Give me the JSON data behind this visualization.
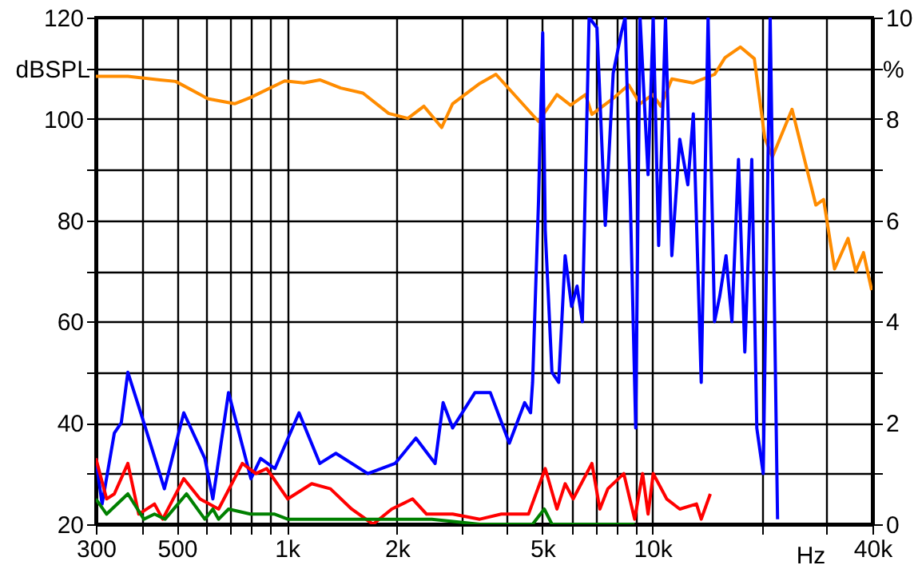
{
  "chart_data": {
    "type": "line",
    "xlabel": "Hz",
    "ylabel": "dBSPL",
    "y2label": "%",
    "log": "x",
    "grid": true,
    "line_style": "solid",
    "marker": "none",
    "xlim": [
      300,
      40000
    ],
    "xticks": [
      300,
      {
        "value": 400,
        "label": null
      },
      500,
      {
        "value": 600,
        "label": null
      },
      {
        "value": 700,
        "label": null
      },
      {
        "value": 800,
        "label": null
      },
      {
        "value": 900,
        "label": null
      },
      {
        "value": 1000,
        "label": "1k"
      },
      {
        "value": 2000,
        "label": "2k"
      },
      {
        "value": 3000,
        "label": null
      },
      {
        "value": 4000,
        "label": null
      },
      {
        "value": 5000,
        "label": "5k"
      },
      {
        "value": 6000,
        "label": null
      },
      {
        "value": 7000,
        "label": null
      },
      {
        "value": 8000,
        "label": null
      },
      {
        "value": 9000,
        "label": null
      },
      {
        "value": 10000,
        "label": "10k"
      },
      {
        "value": 20000,
        "label": null
      },
      {
        "value": 30000,
        "label": null
      },
      {
        "value": 40000,
        "label": "40k"
      }
    ],
    "ylim": [
      20,
      120
    ],
    "yticks": [
      20,
      {
        "value": 30,
        "label": null
      },
      40,
      {
        "value": 50,
        "label": null
      },
      60,
      {
        "value": 70,
        "label": null
      },
      80,
      {
        "value": 90,
        "label": null
      },
      100,
      {
        "value": 110,
        "label": null
      },
      120
    ],
    "y2lim": [
      0,
      10
    ],
    "y2ticks": [
      0,
      {
        "value": 1,
        "label": null
      },
      2,
      {
        "value": 3,
        "label": null
      },
      4,
      {
        "value": 5,
        "label": null
      },
      6,
      {
        "value": 7,
        "label": null
      },
      8,
      {
        "value": 9,
        "label": null
      },
      10
    ],
    "series": [
      {
        "color": "#ff8c00",
        "x": [
          300,
          367,
          449,
          496,
          607,
          719,
          794,
          986,
          1112,
          1230,
          1403,
          1614,
          1897,
          2142,
          2370,
          2650,
          2840,
          3370,
          3730,
          4880,
          5480,
          5970,
          6560,
          6830,
          7790,
          8610,
          9250,
          10020,
          10540,
          11300,
          12900,
          14800,
          15800,
          17400,
          19000,
          20300,
          21300,
          24100,
          28000,
          29400,
          31500,
          34300,
          36000,
          37800,
          39800
        ],
        "values": [
          108.4,
          108.4,
          107.7,
          107.4,
          104.0,
          103.0,
          104.2,
          107.5,
          107.1,
          107.7,
          106.1,
          105.1,
          101.1,
          100.1,
          102.5,
          98.3,
          103.0,
          107.0,
          108.8,
          99.5,
          104.8,
          102.7,
          104.8,
          100.9,
          104.0,
          106.7,
          103.0,
          104.8,
          102.5,
          107.9,
          107.1,
          108.8,
          112.1,
          114.2,
          111.9,
          96.2,
          92.5,
          101.9,
          83.0,
          84.1,
          70.4,
          76.4,
          69.9,
          73.6,
          66.2
        ]
      },
      {
        "color": "#0000ff",
        "axis": "y2",
        "x": [
          300,
          312,
          337,
          352,
          367,
          406,
          462,
          522,
          596,
          627,
          692,
          797,
          847,
          927,
          1079,
          1230,
          1361,
          1664,
          1976,
          2253,
          2543,
          2675,
          2840,
          3270,
          3600,
          4060,
          4470,
          4640,
          4700,
          4880,
          5010,
          5090,
          5310,
          5540,
          5770,
          6010,
          6220,
          6430,
          6710,
          7050,
          7430,
          7810,
          8220,
          8420,
          8700,
          9000,
          9250,
          9730,
          10050,
          10400,
          10860,
          11300,
          11880,
          12500,
          12940,
          13600,
          14200,
          14790,
          15280,
          15900,
          16500,
          17200,
          17900,
          18700,
          19300,
          20100,
          21000,
          22000
        ],
        "values": [
          1.3,
          0.4,
          1.8,
          2.0,
          3.0,
          2.0,
          0.7,
          2.2,
          1.3,
          0.5,
          2.6,
          0.9,
          1.3,
          1.1,
          2.2,
          1.2,
          1.4,
          1.0,
          1.2,
          1.7,
          1.2,
          2.4,
          1.9,
          2.6,
          2.6,
          1.6,
          2.4,
          2.2,
          2.8,
          6.4,
          9.7,
          5.8,
          3.0,
          2.8,
          5.3,
          4.3,
          4.7,
          4.0,
          10,
          9.8,
          5.9,
          8.9,
          9.7,
          10,
          6.4,
          1.9,
          10,
          6.9,
          10,
          5.5,
          10,
          5.3,
          7.6,
          6.7,
          8.1,
          2.8,
          10,
          4.0,
          4.5,
          5.3,
          4.0,
          7.2,
          3.4,
          7.2,
          1.9,
          1.0,
          10,
          0.1
        ]
      },
      {
        "color": "#ff0000",
        "axis": "y2",
        "x": [
          300,
          321,
          337,
          367,
          393,
          434,
          457,
          522,
          578,
          650,
          755,
          822,
          880,
          1005,
          1169,
          1315,
          1503,
          1720,
          1935,
          2207,
          2410,
          2840,
          3370,
          3860,
          4580,
          5090,
          5480,
          5770,
          6070,
          6830,
          7180,
          7550,
          8350,
          8940,
          9400,
          9730,
          10050,
          10940,
          11880,
          13200,
          13600,
          14400
        ],
        "values": [
          1.3,
          0.5,
          0.6,
          1.2,
          0.2,
          0.4,
          0.1,
          0.9,
          0.5,
          0.3,
          1.2,
          1.0,
          1.1,
          0.5,
          0.8,
          0.7,
          0.3,
          0.0,
          0.3,
          0.5,
          0.2,
          0.2,
          0.1,
          0.2,
          0.2,
          1.1,
          0.3,
          0.8,
          0.5,
          1.2,
          0.3,
          0.7,
          1.0,
          0.1,
          1.0,
          0.2,
          1.0,
          0.5,
          0.3,
          0.4,
          0.1,
          0.6
        ]
      },
      {
        "color": "#008000",
        "axis": "y2",
        "x": [
          300,
          321,
          367,
          406,
          434,
          464,
          531,
          596,
          627,
          650,
          692,
          794,
          925,
          1005,
          1230,
          1720,
          2490,
          3370,
          4700,
          5060,
          5310,
          8940
        ],
        "values": [
          0.5,
          0.2,
          0.6,
          0.1,
          0.2,
          0.1,
          0.6,
          0.1,
          0.3,
          0.1,
          0.3,
          0.2,
          0.2,
          0.1,
          0.1,
          0.1,
          0.1,
          0.0,
          0.0,
          0.3,
          0.0,
          0.0
        ]
      }
    ]
  }
}
